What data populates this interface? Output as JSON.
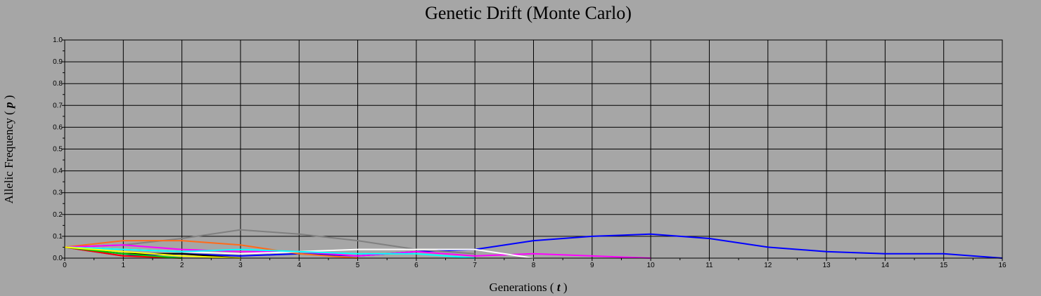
{
  "chart_data": {
    "type": "line",
    "title": "Genetic Drift (Monte Carlo)",
    "xlabel": "Generations",
    "xlabel_symbol": "t",
    "ylabel": "Allelic Frequency",
    "ylabel_symbol": "p",
    "xlim": [
      0,
      16
    ],
    "ylim": [
      0,
      1.0
    ],
    "x_ticks": [
      "0",
      "1",
      "2",
      "3",
      "4",
      "5",
      "6",
      "7",
      "8",
      "9",
      "10",
      "11",
      "12",
      "13",
      "14",
      "15",
      "16"
    ],
    "y_ticks": [
      "0.0",
      "0.1",
      "0.2",
      "0.3",
      "0.4",
      "0.5",
      "0.6",
      "0.7",
      "0.8",
      "0.9",
      "1.0"
    ],
    "grid": true,
    "background_color": "#a6a6a6",
    "series": [
      {
        "color": "#0000ff",
        "x": [
          0,
          1,
          2,
          3,
          4,
          5,
          6,
          7,
          8,
          9,
          10,
          11,
          12,
          13,
          14,
          15,
          16
        ],
        "y": [
          0.05,
          0.01,
          0.02,
          0.01,
          0.02,
          0.01,
          0.03,
          0.04,
          0.08,
          0.1,
          0.11,
          0.09,
          0.05,
          0.03,
          0.02,
          0.02,
          0.0
        ]
      },
      {
        "color": "#808080",
        "x": [
          0,
          1,
          2,
          3,
          4,
          5,
          6,
          7
        ],
        "y": [
          0.05,
          0.06,
          0.09,
          0.13,
          0.11,
          0.08,
          0.04,
          0.02
        ]
      },
      {
        "color": "#ff6a1a",
        "x": [
          0,
          1,
          2,
          3,
          4,
          5
        ],
        "y": [
          0.05,
          0.08,
          0.08,
          0.06,
          0.02,
          0.0
        ]
      },
      {
        "color": "#ff00ff",
        "x": [
          0,
          1,
          2,
          3,
          4,
          5,
          6,
          7,
          8,
          9,
          10
        ],
        "y": [
          0.05,
          0.06,
          0.04,
          0.03,
          0.03,
          0.01,
          0.03,
          0.01,
          0.02,
          0.01,
          0.0
        ]
      },
      {
        "color": "#ffffff",
        "x": [
          0,
          1,
          2,
          3,
          4,
          5,
          6,
          7,
          8
        ],
        "y": [
          0.05,
          0.04,
          0.03,
          0.02,
          0.03,
          0.04,
          0.04,
          0.04,
          0.0
        ]
      },
      {
        "color": "#00ffff",
        "x": [
          0,
          1,
          2,
          3,
          4,
          5,
          6,
          7
        ],
        "y": [
          0.05,
          0.04,
          0.03,
          0.04,
          0.03,
          0.02,
          0.02,
          0.0
        ]
      },
      {
        "color": "#000000",
        "x": [
          0,
          1,
          2,
          3
        ],
        "y": [
          0.05,
          0.02,
          0.02,
          0.0
        ]
      },
      {
        "color": "#ff0000",
        "x": [
          0,
          1,
          2
        ],
        "y": [
          0.05,
          0.01,
          0.0
        ]
      },
      {
        "color": "#00cc00",
        "x": [
          0,
          1,
          2
        ],
        "y": [
          0.05,
          0.02,
          0.0
        ]
      },
      {
        "color": "#ffff00",
        "x": [
          0,
          1,
          2,
          3
        ],
        "y": [
          0.05,
          0.03,
          0.01,
          0.0
        ]
      }
    ]
  }
}
